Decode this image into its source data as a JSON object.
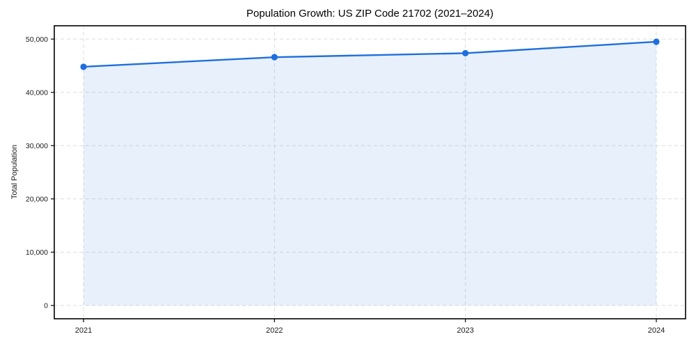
{
  "figure": {
    "background": "#ffffff",
    "frame_color": "#000000",
    "tick_color": "#000000",
    "text_color": "#1a1a1a"
  },
  "chart_data": {
    "type": "line",
    "title": "Population Growth: US ZIP Code 21702 (2021–2024)",
    "xlabel": "",
    "ylabel": "Total Population",
    "x": [
      2021,
      2022,
      2023,
      2024
    ],
    "x_tick_labels": [
      "2021",
      "2022",
      "2023",
      "2024"
    ],
    "series": [
      {
        "name": "Total Population",
        "values": [
          44800,
          46600,
          47350,
          49500
        ],
        "line_color": "#1f6fdc",
        "marker": "circle",
        "area_fill": "rgba(31, 111, 220, 0.10)",
        "area_to_zero": true
      }
    ],
    "y_ticks": [
      0,
      10000,
      20000,
      30000,
      40000,
      50000
    ],
    "y_tick_labels": [
      "0",
      "10,000",
      "20,000",
      "30,000",
      "40,000",
      "50,000"
    ],
    "ylim": [
      -2500,
      52500
    ],
    "grid": "dashed",
    "grid_color": "#dcdcdc",
    "legend": "none"
  }
}
